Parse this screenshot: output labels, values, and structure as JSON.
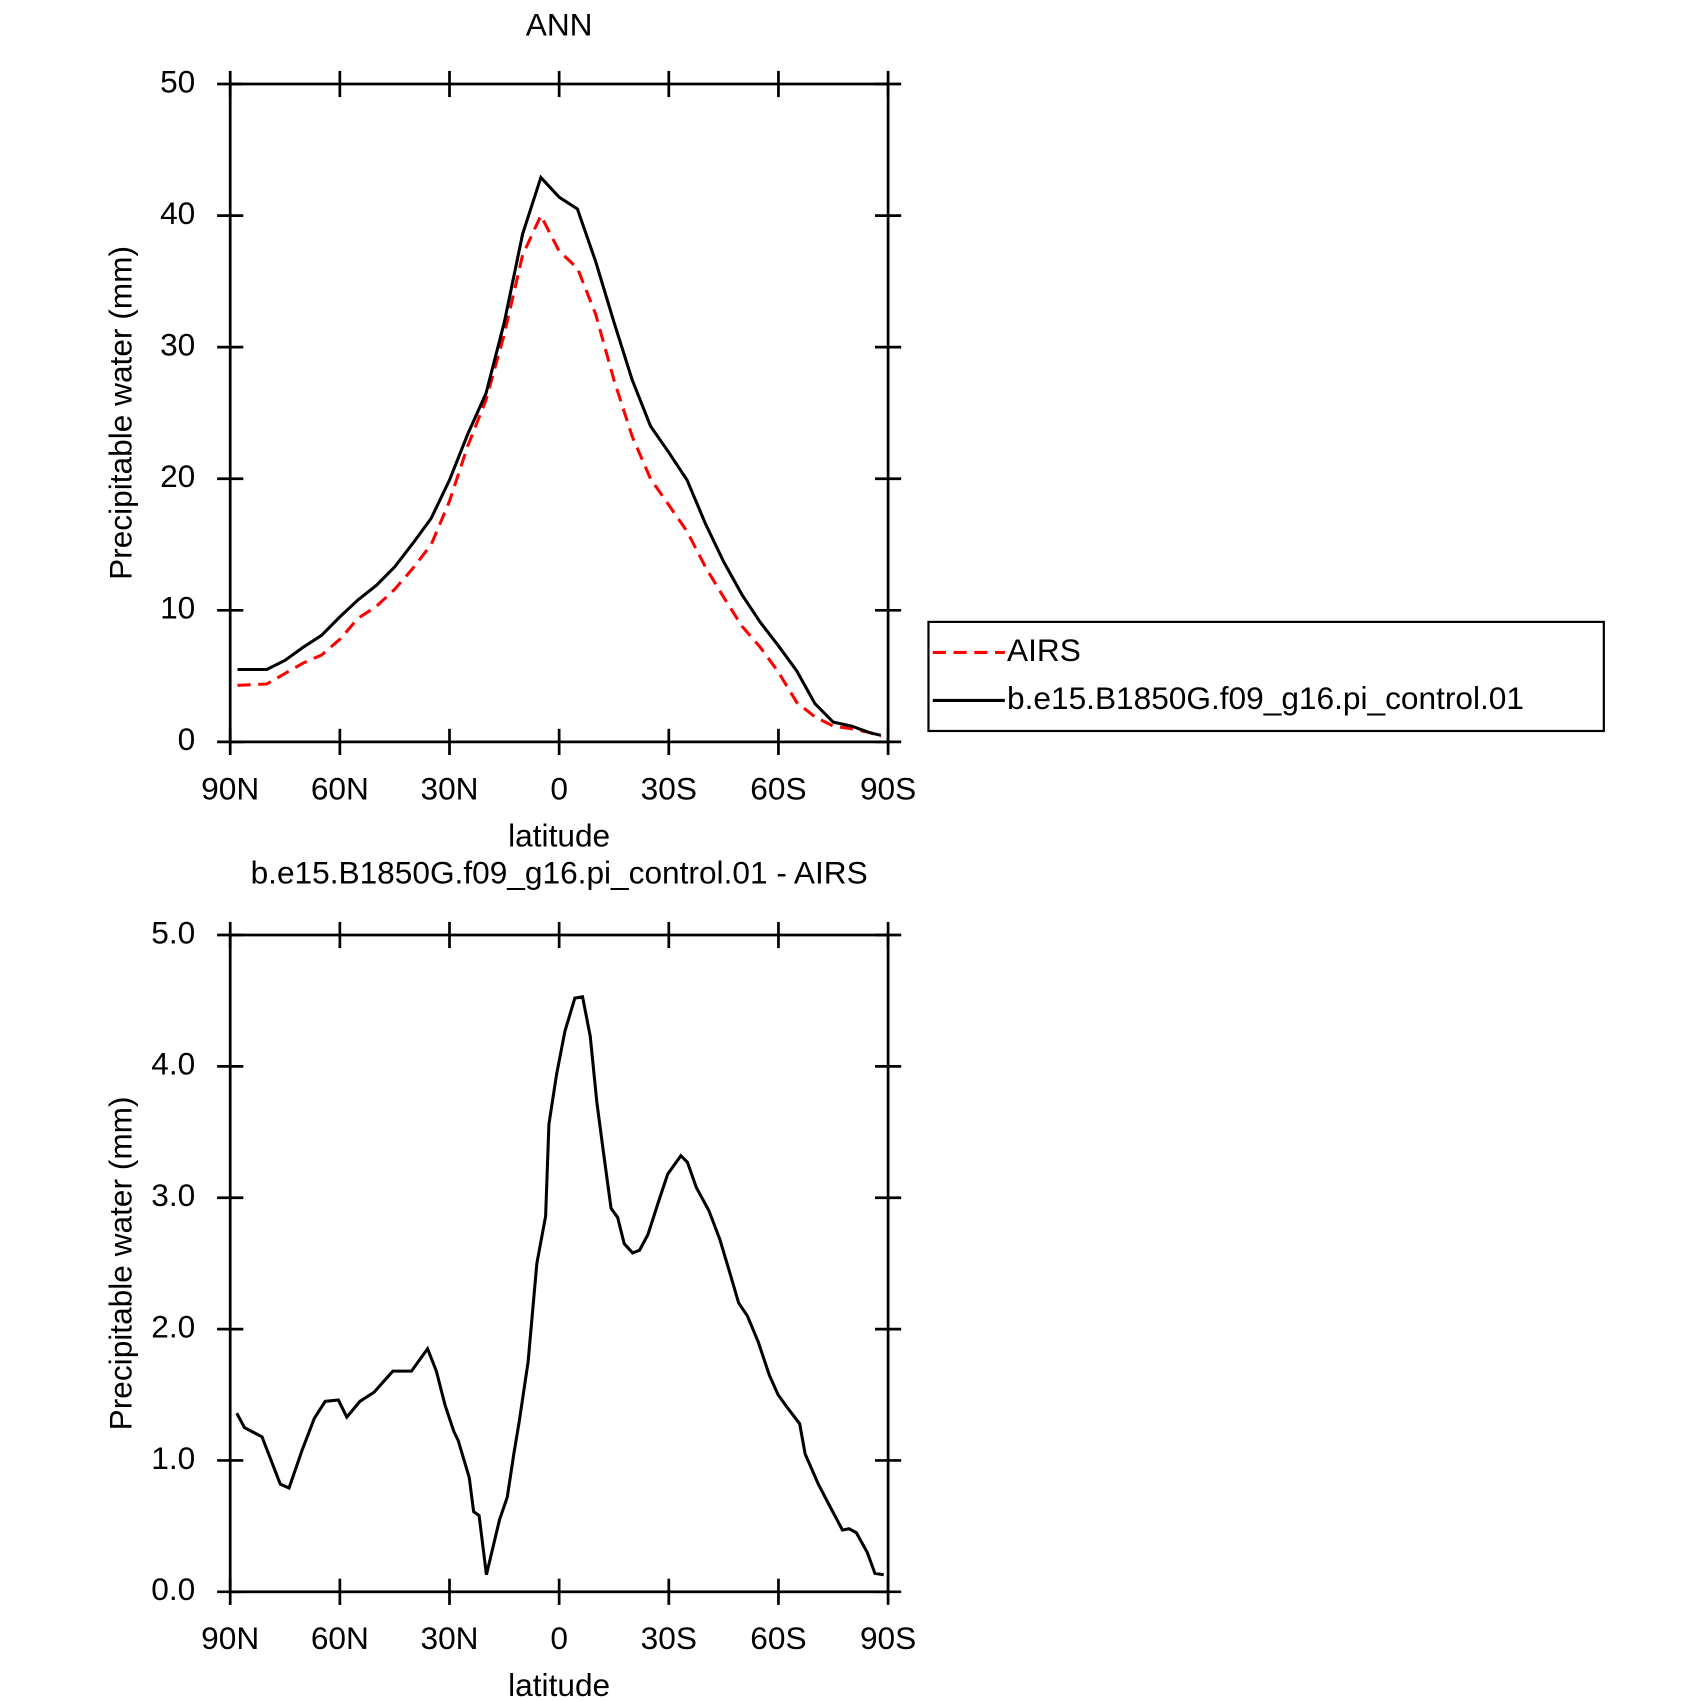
{
  "chart_data": [
    {
      "type": "line",
      "title": "ANN",
      "xlabel": "latitude",
      "ylabel": "Precipitable water (mm)",
      "x": [
        88,
        80,
        75,
        70,
        65,
        60,
        55,
        50,
        45,
        40,
        35,
        30,
        25,
        20,
        15,
        10,
        5,
        0,
        -5,
        -10,
        -15,
        -20,
        -25,
        -30,
        -35,
        -40,
        -45,
        -50,
        -55,
        -60,
        -65,
        -70,
        -75,
        -80,
        -85,
        -88
      ],
      "series": [
        {
          "name": "AIRS",
          "color": "#ff0000",
          "dash": true,
          "values": [
            4.3,
            4.4,
            5.2,
            6.0,
            6.6,
            7.8,
            9.4,
            10.3,
            11.6,
            13.2,
            15.0,
            18.3,
            22.5,
            26.0,
            31.0,
            37.0,
            40.0,
            37.3,
            36.0,
            32.5,
            27.5,
            23.2,
            20.0,
            18.0,
            16.0,
            13.3,
            11.0,
            8.8,
            7.2,
            5.3,
            3.0,
            1.9,
            1.2,
            1.0,
            0.7,
            0.4
          ]
        },
        {
          "name": "b.e15.B1850G.f09_g16.pi_control.01",
          "color": "#000000",
          "dash": false,
          "values": [
            5.5,
            5.5,
            6.2,
            7.2,
            8.1,
            9.5,
            10.8,
            11.9,
            13.3,
            15.1,
            17.0,
            19.9,
            23.4,
            26.5,
            31.9,
            38.6,
            42.9,
            41.4,
            40.5,
            36.5,
            31.9,
            27.5,
            24.0,
            22.0,
            19.9,
            16.6,
            13.7,
            11.2,
            9.1,
            7.3,
            5.4,
            2.9,
            1.5,
            1.2,
            0.7,
            0.5
          ]
        }
      ],
      "xlim": [
        90,
        -90
      ],
      "xticks": [
        {
          "value": 90,
          "label": "90N"
        },
        {
          "value": 60,
          "label": "60N"
        },
        {
          "value": 30,
          "label": "30N"
        },
        0,
        {
          "value": -30,
          "label": "30S"
        },
        {
          "value": -60,
          "label": "60S"
        },
        {
          "value": -90,
          "label": "90S"
        }
      ],
      "ylim": [
        0,
        50
      ],
      "yticks": [
        0,
        10,
        20,
        30,
        40,
        50
      ],
      "legend": "outside-right"
    },
    {
      "type": "line",
      "title": "b.e15.B1850G.f09_g16.pi_control.01 - AIRS",
      "xlabel": "latitude",
      "ylabel": "Precipitable water (mm)",
      "x": [
        88.2,
        86.1,
        81.3,
        76.3,
        73.9,
        70.3,
        67.0,
        64.0,
        60.4,
        58.1,
        54.5,
        50.6,
        45.5,
        40.4,
        36.0,
        33.6,
        31.2,
        28.8,
        27.6,
        24.6,
        23.4,
        21.9,
        19.9,
        16.3,
        14.2,
        12.4,
        10.9,
        8.5,
        6.1,
        3.7,
        2.8,
        0.7,
        -1.6,
        -4.3,
        -6.4,
        -8.5,
        -10.3,
        -12.1,
        -14.2,
        -16.0,
        -17.8,
        -20.1,
        -22.0,
        -24.3,
        -27.3,
        -29.7,
        -33.3,
        -35.1,
        -37.5,
        -41.0,
        -44.0,
        -47.0,
        -49.1,
        -51.5,
        -54.5,
        -57.5,
        -59.9,
        -62.5,
        -65.8,
        -67.3,
        -70.9,
        -73.9,
        -76.0,
        -77.5,
        -79.3,
        -81.3,
        -84.3,
        -86.4,
        -88.8
      ],
      "series": [
        {
          "color": "#000000",
          "values": [
            1.36,
            1.25,
            1.18,
            0.82,
            0.79,
            1.08,
            1.32,
            1.45,
            1.46,
            1.33,
            1.45,
            1.52,
            1.68,
            1.68,
            1.85,
            1.68,
            1.42,
            1.22,
            1.15,
            0.87,
            0.61,
            0.58,
            0.13,
            0.55,
            0.72,
            1.05,
            1.3,
            1.75,
            2.5,
            2.86,
            3.56,
            3.94,
            4.27,
            4.52,
            4.53,
            4.23,
            3.73,
            3.35,
            2.92,
            2.85,
            2.65,
            2.58,
            2.6,
            2.72,
            2.98,
            3.18,
            3.32,
            3.27,
            3.08,
            2.9,
            2.68,
            2.4,
            2.2,
            2.1,
            1.9,
            1.65,
            1.5,
            1.4,
            1.28,
            1.05,
            0.82,
            0.66,
            0.55,
            0.47,
            0.48,
            0.45,
            0.3,
            0.14,
            0.13
          ]
        }
      ],
      "xlim": [
        90,
        -90
      ],
      "xticks": [
        {
          "value": 90,
          "label": "90N"
        },
        {
          "value": 60,
          "label": "60N"
        },
        {
          "value": 30,
          "label": "30N"
        },
        0,
        {
          "value": -30,
          "label": "30S"
        },
        {
          "value": -60,
          "label": "60S"
        },
        {
          "value": -90,
          "label": "90S"
        }
      ],
      "ylim": [
        0,
        5
      ],
      "yticks": [
        {
          "value": 0,
          "label": "0.0"
        },
        {
          "value": 1,
          "label": "1.0"
        },
        {
          "value": 2,
          "label": "2.0"
        },
        {
          "value": 3,
          "label": "3.0"
        },
        {
          "value": 4,
          "label": "4.0"
        },
        {
          "value": 5,
          "label": "5.0"
        }
      ]
    }
  ]
}
